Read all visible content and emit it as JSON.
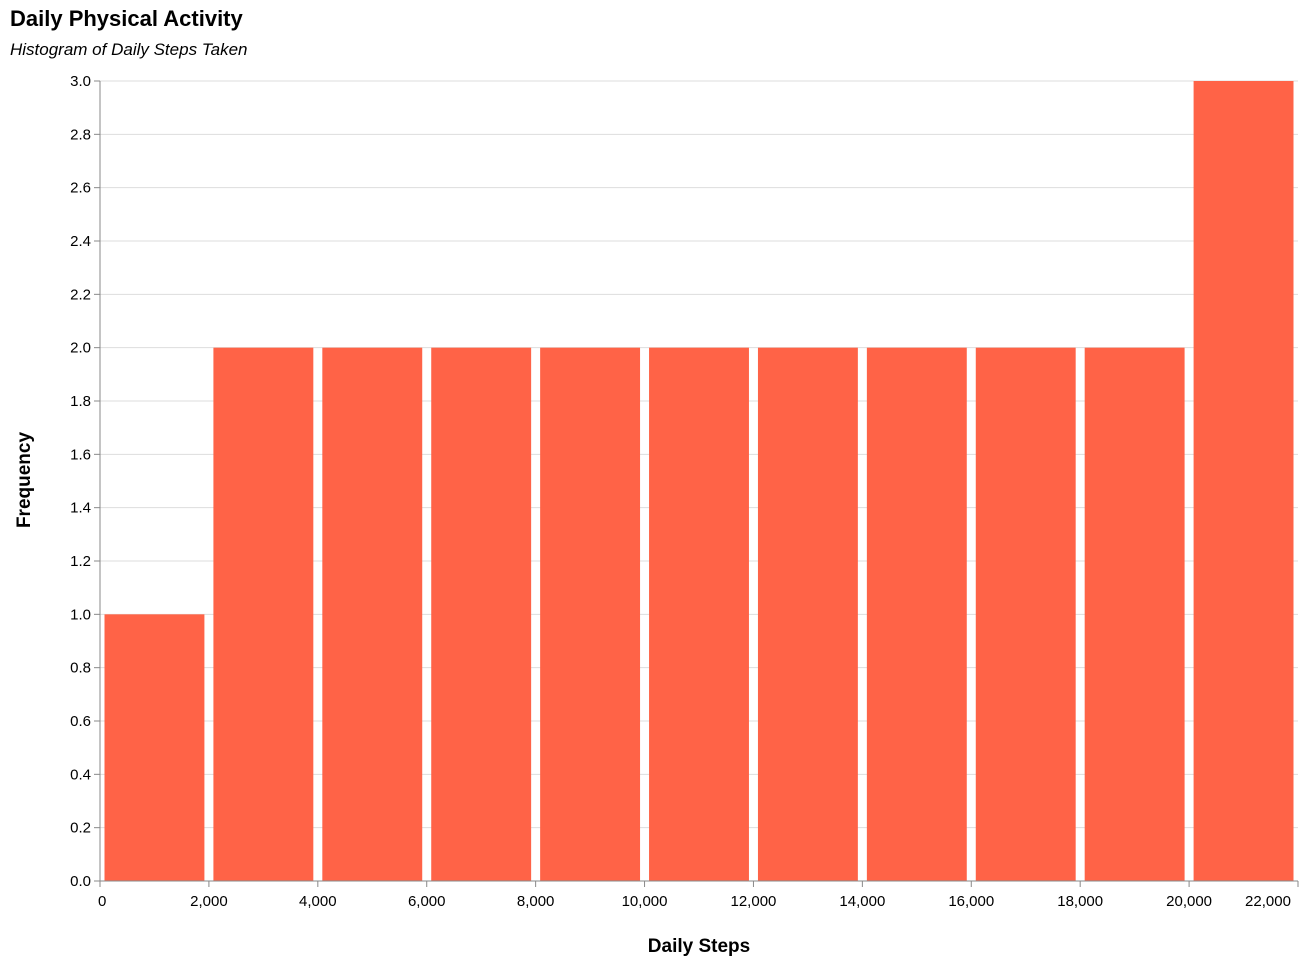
{
  "chart_data": {
    "type": "bar",
    "title": "Daily Physical Activity",
    "subtitle": "Histogram of Daily Steps Taken",
    "xlabel": "Daily Steps",
    "ylabel": "Frequency",
    "bins": [
      {
        "start": 0,
        "end": 2000,
        "count": 1
      },
      {
        "start": 2000,
        "end": 4000,
        "count": 2
      },
      {
        "start": 4000,
        "end": 6000,
        "count": 2
      },
      {
        "start": 6000,
        "end": 8000,
        "count": 2
      },
      {
        "start": 8000,
        "end": 10000,
        "count": 2
      },
      {
        "start": 10000,
        "end": 12000,
        "count": 2
      },
      {
        "start": 12000,
        "end": 14000,
        "count": 2
      },
      {
        "start": 14000,
        "end": 16000,
        "count": 2
      },
      {
        "start": 16000,
        "end": 18000,
        "count": 2
      },
      {
        "start": 18000,
        "end": 20000,
        "count": 2
      },
      {
        "start": 20000,
        "end": 22000,
        "count": 3
      }
    ],
    "xlim": [
      0,
      22000
    ],
    "ylim": [
      0,
      3
    ],
    "x_ticks": [
      "0",
      "2,000",
      "4,000",
      "6,000",
      "8,000",
      "10,000",
      "12,000",
      "14,000",
      "16,000",
      "18,000",
      "20,000",
      "22,000"
    ],
    "y_ticks": [
      "0.0",
      "0.2",
      "0.4",
      "0.6",
      "0.8",
      "1.0",
      "1.2",
      "1.4",
      "1.6",
      "1.8",
      "2.0",
      "2.2",
      "2.4",
      "2.6",
      "2.8",
      "3.0"
    ],
    "grid": "horizontal",
    "bar_color": "#FF6347",
    "grid_color": "#DDDDDD",
    "axis_color": "#888888"
  }
}
